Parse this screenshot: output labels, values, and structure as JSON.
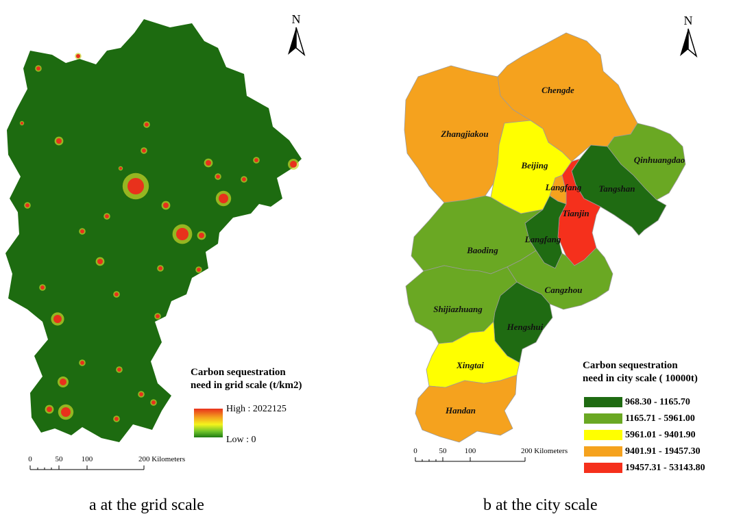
{
  "panel_a": {
    "legend": {
      "title_line1": "Carbon sequestration",
      "title_line2": "need in grid scale  (t/km2)",
      "high_label": "High : 2022125",
      "low_label": "Low : 0",
      "gradient_colors": [
        "#e8311c",
        "#f4a21e",
        "#f4f41c",
        "#6cc22a",
        "#1e7a12"
      ]
    },
    "scale_bar": {
      "ticks": [
        "0",
        "50",
        "100",
        "200 Kilometers"
      ]
    },
    "north_label": "N",
    "caption": "a at the grid scale",
    "base_color": "#1d6b10",
    "hotspot_color": "#e8311c"
  },
  "panel_b": {
    "cities": [
      {
        "name": "Chengde",
        "class": 3
      },
      {
        "name": "Zhangjiakou",
        "class": 3
      },
      {
        "name": "Beijing",
        "class": 2
      },
      {
        "name": "Qinhuangdao",
        "class": 1
      },
      {
        "name": "Langfang",
        "class": 0
      },
      {
        "name": "Tangshan",
        "class": 4
      },
      {
        "name": "Tianjin",
        "class": 3
      },
      {
        "name": "Langfang",
        "class": 0
      },
      {
        "name": "Baoding",
        "class": 1
      },
      {
        "name": "Cangzhou",
        "class": 1
      },
      {
        "name": "Shijiazhuang",
        "class": 1
      },
      {
        "name": "Hengshui",
        "class": 0
      },
      {
        "name": "Xingtai",
        "class": 2
      },
      {
        "name": "Handan",
        "class": 3
      }
    ],
    "legend": {
      "title_line1": "Carbon sequestration",
      "title_line2": "need in city scale ( 10000t)",
      "classes": [
        {
          "range": "968.30 - 1165.70",
          "color": "#1f6b12"
        },
        {
          "range": "1165.71 - 5961.00",
          "color": "#6aa823"
        },
        {
          "range": "5961.01 - 9401.90",
          "color": "#ffff00"
        },
        {
          "range": "9401.91 - 19457.30",
          "color": "#f5a21e"
        },
        {
          "range": "19457.31 - 53143.80",
          "color": "#f5301c"
        }
      ]
    },
    "scale_bar": {
      "ticks": [
        "0",
        "50",
        "100",
        "200 Kilometers"
      ]
    },
    "north_label": "N",
    "caption": "b at the city scale"
  }
}
